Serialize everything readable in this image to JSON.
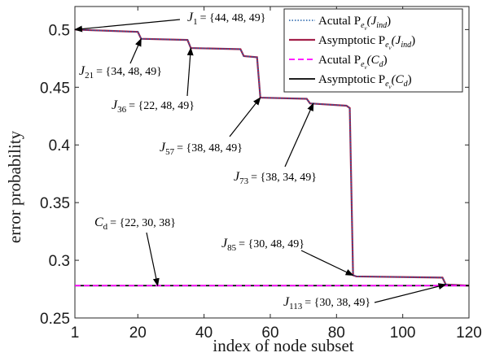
{
  "chart_data": {
    "type": "line",
    "xlabel": "index of node subset",
    "ylabel": "error probability",
    "xlim": [
      1,
      120
    ],
    "ylim": [
      0.25,
      0.52
    ],
    "xticks": [
      1,
      20,
      40,
      60,
      80,
      100,
      120
    ],
    "yticks": [
      0.25,
      0.3,
      0.35,
      0.4,
      0.45,
      0.5
    ],
    "ytick_labels": [
      "0.25",
      "0.3",
      "0.35",
      "0.4",
      "0.45",
      "0.5"
    ],
    "grid": false,
    "legend_position": "top-right",
    "colors": {
      "actual_ind": "#1f5fa8",
      "asym_ind": "#a3204a",
      "actual_cd": "#ff00ff",
      "asym_cd": "#000000"
    },
    "series": [
      {
        "name": "Acutal P_{e_v}(J_{ind})",
        "style": "dotted",
        "x": [
          1,
          20,
          21,
          35,
          36,
          51,
          52,
          56,
          57,
          71,
          72,
          83,
          84,
          85,
          86,
          112,
          113,
          120
        ],
        "values": [
          0.5,
          0.498,
          0.492,
          0.491,
          0.484,
          0.483,
          0.477,
          0.476,
          0.441,
          0.44,
          0.436,
          0.434,
          0.432,
          0.287,
          0.286,
          0.285,
          0.279,
          0.278
        ]
      },
      {
        "name": "Asymptotic P_{e_v}(J_{ind})",
        "style": "solid",
        "x": [
          1,
          20,
          21,
          35,
          36,
          51,
          52,
          56,
          57,
          71,
          72,
          83,
          84,
          85,
          86,
          112,
          113,
          120
        ],
        "values": [
          0.5,
          0.498,
          0.492,
          0.491,
          0.484,
          0.483,
          0.477,
          0.476,
          0.441,
          0.44,
          0.436,
          0.434,
          0.432,
          0.287,
          0.286,
          0.285,
          0.279,
          0.278
        ]
      },
      {
        "name": "Acutal P_{e_v}(C_d)",
        "style": "dashed",
        "x": [
          1,
          120
        ],
        "values": [
          0.278,
          0.278
        ]
      },
      {
        "name": "Asymptotic P_{e_v}(C_d)",
        "style": "solid",
        "x": [
          1,
          120
        ],
        "values": [
          0.278,
          0.278
        ]
      }
    ],
    "legend_entries": [
      {
        "key": "actual_ind",
        "main": "Acutal P",
        "sub": "e",
        "subsub": "v",
        "arg": "(J",
        "argsub": "ind",
        "close": ")"
      },
      {
        "key": "asym_ind",
        "main": "Asymptotic P",
        "sub": "e",
        "subsub": "v",
        "arg": "(J",
        "argsub": "ind",
        "close": ")"
      },
      {
        "key": "actual_cd",
        "main": "Acutal P",
        "sub": "e",
        "subsub": "v",
        "arg": "(C",
        "argsub": "d",
        "close": ")"
      },
      {
        "key": "asym_cd",
        "main": "Asymptotic P",
        "sub": "e",
        "subsub": "v",
        "arg": "(C",
        "argsub": "d",
        "close": ")"
      }
    ],
    "annotations": [
      {
        "sym": "J",
        "sub": "1",
        "set": "= {44, 48, 49}",
        "target": [
          1,
          0.5
        ]
      },
      {
        "sym": "J",
        "sub": "21",
        "set": "= {34, 48, 49}",
        "target": [
          21,
          0.492
        ]
      },
      {
        "sym": "J",
        "sub": "36",
        "set": "= {22, 48, 49}",
        "target": [
          36,
          0.484
        ]
      },
      {
        "sym": "J",
        "sub": "57",
        "set": "= {38, 48, 49}",
        "target": [
          57,
          0.441
        ]
      },
      {
        "sym": "J",
        "sub": "73",
        "set": "= {38, 34, 49}",
        "target": [
          73,
          0.436
        ]
      },
      {
        "sym": "C",
        "sub": "d",
        "set": "= {22, 30, 38}",
        "target": [
          26,
          0.278
        ]
      },
      {
        "sym": "J",
        "sub": "85",
        "set": "= {30, 48, 49}",
        "target": [
          85,
          0.287
        ]
      },
      {
        "sym": "J",
        "sub": "113",
        "set": "= {30, 38, 49}",
        "target": [
          113,
          0.279
        ]
      }
    ]
  }
}
